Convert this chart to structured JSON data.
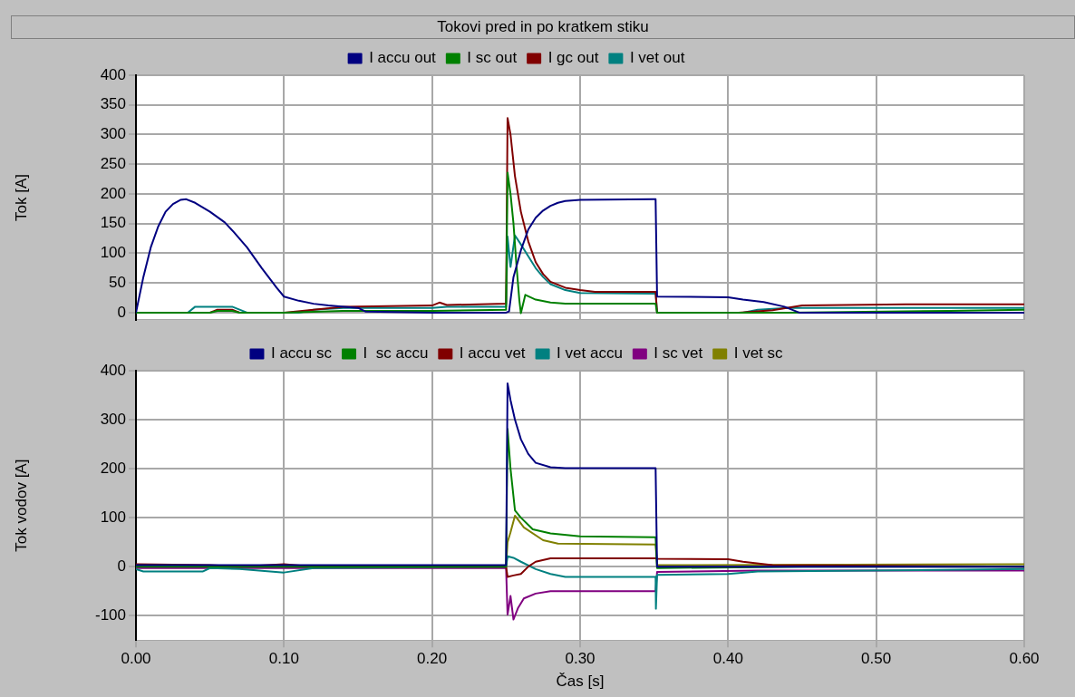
{
  "chart_data": [
    {
      "type": "line",
      "title": "Tokovi pred in po kratkem stiku",
      "ylabel": "Tok [A]",
      "xlim": [
        0,
        0.6
      ],
      "xticks": [
        {
          "value": 0,
          "label": null
        },
        {
          "value": 0.1,
          "label": null
        },
        {
          "value": 0.2,
          "label": null
        },
        {
          "value": 0.3,
          "label": null
        },
        {
          "value": 0.4,
          "label": null
        },
        {
          "value": 0.5,
          "label": null
        },
        {
          "value": 0.6,
          "label": null
        }
      ],
      "ylim": [
        -12,
        400
      ],
      "yticks": [
        0,
        50,
        100,
        150,
        200,
        250,
        300,
        350,
        400
      ],
      "tick_labels": "y",
      "grid": true,
      "legend": "top",
      "marker": "none",
      "series": [
        {
          "name": "I accu out",
          "color": "#000080",
          "x": [
            0,
            0.005,
            0.01,
            0.015,
            0.02,
            0.025,
            0.03,
            0.034,
            0.04,
            0.05,
            0.06,
            0.066,
            0.075,
            0.085,
            0.095,
            0.1,
            0.11,
            0.12,
            0.13,
            0.15,
            0.155,
            0.2,
            0.25,
            0.252,
            0.255,
            0.26,
            0.265,
            0.27,
            0.275,
            0.28,
            0.285,
            0.29,
            0.3,
            0.35,
            0.351,
            0.352,
            0.4,
            0.41,
            0.424,
            0.438,
            0.448,
            0.5,
            0.6
          ],
          "values": [
            0,
            60,
            110,
            145,
            170,
            183,
            190,
            191,
            185,
            170,
            152,
            136,
            110,
            75,
            42,
            27,
            20,
            15,
            12,
            8,
            2,
            0,
            0,
            2,
            60,
            105,
            140,
            160,
            172,
            180,
            185,
            188,
            190,
            191,
            191,
            27,
            26,
            22,
            18,
            10,
            0,
            0,
            0
          ]
        },
        {
          "name": "I sc out",
          "color": "#008000",
          "x": [
            0,
            0.05,
            0.055,
            0.065,
            0.07,
            0.1,
            0.14,
            0.2,
            0.25,
            0.251,
            0.253,
            0.255,
            0.257,
            0.259,
            0.26,
            0.263,
            0.27,
            0.28,
            0.29,
            0.351,
            0.352,
            0.44,
            0.55,
            0.6
          ],
          "values": [
            0,
            0,
            3,
            3,
            0,
            0,
            3,
            3,
            5,
            236,
            200,
            150,
            80,
            20,
            -1,
            30,
            22,
            17,
            15,
            15,
            0,
            0,
            3,
            5
          ]
        },
        {
          "name": "I gc out",
          "color": "#800000",
          "x": [
            0,
            0.05,
            0.055,
            0.065,
            0.07,
            0.1,
            0.12,
            0.14,
            0.2,
            0.205,
            0.21,
            0.25,
            0.251,
            0.253,
            0.256,
            0.26,
            0.265,
            0.27,
            0.275,
            0.28,
            0.29,
            0.3,
            0.31,
            0.351,
            0.352,
            0.407,
            0.43,
            0.45,
            0.52,
            0.6
          ],
          "values": [
            0,
            0,
            5,
            5,
            0,
            0,
            5,
            10,
            12,
            17,
            13,
            15,
            328,
            300,
            230,
            170,
            120,
            85,
            65,
            52,
            42,
            38,
            35,
            35,
            0,
            0,
            4,
            12,
            14,
            14
          ]
        },
        {
          "name": "I vet out",
          "color": "#008080",
          "x": [
            0,
            0.035,
            0.04,
            0.065,
            0.07,
            0.075,
            0.11,
            0.12,
            0.14,
            0.2,
            0.21,
            0.25,
            0.251,
            0.253,
            0.256,
            0.26,
            0.265,
            0.27,
            0.275,
            0.28,
            0.29,
            0.3,
            0.351,
            0.352,
            0.41,
            0.42,
            0.44,
            0.6
          ],
          "values": [
            0,
            0,
            10,
            10,
            5,
            0,
            0,
            5,
            8,
            8,
            10,
            10,
            128,
            77,
            130,
            115,
            95,
            75,
            60,
            48,
            38,
            33,
            32,
            0,
            0,
            5,
            8,
            8
          ]
        }
      ]
    },
    {
      "type": "line",
      "xlabel": "Čas [s]",
      "ylabel": "Tok vodov [A]",
      "xlim": [
        0,
        0.6
      ],
      "xticks": [
        {
          "value": 0,
          "label": "0.00"
        },
        {
          "value": 0.1,
          "label": "0.10"
        },
        {
          "value": 0.2,
          "label": "0.20"
        },
        {
          "value": 0.3,
          "label": "0.30"
        },
        {
          "value": 0.4,
          "label": "0.40"
        },
        {
          "value": 0.5,
          "label": "0.50"
        },
        {
          "value": 0.6,
          "label": "0.60"
        }
      ],
      "ylim": [
        -150,
        400
      ],
      "yticks": [
        -100,
        0,
        100,
        200,
        300,
        400
      ],
      "grid": true,
      "legend": "top",
      "marker": "none",
      "series": [
        {
          "name": "I accu sc",
          "color": "#000080",
          "x": [
            0,
            0.25,
            0.251,
            0.253,
            0.256,
            0.26,
            0.265,
            0.27,
            0.28,
            0.29,
            0.351,
            0.352,
            0.6
          ],
          "values": [
            3,
            3,
            374,
            340,
            300,
            260,
            230,
            212,
            203,
            201,
            201,
            0,
            0
          ]
        },
        {
          "name": "I  sc accu",
          "color": "#008000",
          "x": [
            0,
            0.25,
            0.251,
            0.253,
            0.256,
            0.26,
            0.268,
            0.28,
            0.3,
            0.351,
            0.352,
            0.45,
            0.6
          ],
          "values": [
            0,
            0,
            281,
            200,
            115,
            100,
            76,
            68,
            62,
            60,
            -3,
            0,
            0
          ]
        },
        {
          "name": "I accu vet",
          "color": "#800000",
          "x": [
            0,
            0.05,
            0.07,
            0.1,
            0.12,
            0.25,
            0.251,
            0.255,
            0.26,
            0.265,
            0.27,
            0.28,
            0.351,
            0.352,
            0.4,
            0.41,
            0.43,
            0.6
          ],
          "values": [
            5,
            3,
            0,
            5,
            0,
            0,
            -21,
            -18,
            -15,
            0,
            10,
            17,
            17,
            16,
            15,
            10,
            3,
            0
          ]
        },
        {
          "name": "I vet accu",
          "color": "#008080",
          "x": [
            0,
            0.005,
            0.045,
            0.05,
            0.07,
            0.1,
            0.12,
            0.25,
            0.251,
            0.255,
            0.26,
            0.27,
            0.28,
            0.29,
            0.351,
            0.3512,
            0.352,
            0.4,
            0.42,
            0.6
          ],
          "values": [
            -5,
            -10,
            -10,
            -3,
            -5,
            -12,
            -3,
            0,
            21,
            18,
            10,
            -5,
            -15,
            -21,
            -21,
            -86,
            -17,
            -15,
            -10,
            -5
          ]
        },
        {
          "name": "I sc vet",
          "color": "#800080",
          "x": [
            0,
            0.25,
            0.251,
            0.253,
            0.255,
            0.258,
            0.262,
            0.27,
            0.28,
            0.351,
            0.352,
            0.42,
            0.6
          ],
          "values": [
            -3,
            -3,
            -98,
            -60,
            -108,
            -85,
            -65,
            -55,
            -50,
            -50,
            -11,
            -8,
            -8
          ]
        },
        {
          "name": "I vet sc",
          "color": "#808000",
          "x": [
            0,
            0.25,
            0.251,
            0.253,
            0.256,
            0.262,
            0.275,
            0.285,
            0.351,
            0.352,
            0.6
          ],
          "values": [
            0,
            0,
            50,
            70,
            104,
            80,
            54,
            47,
            45,
            3,
            5
          ]
        }
      ]
    }
  ]
}
